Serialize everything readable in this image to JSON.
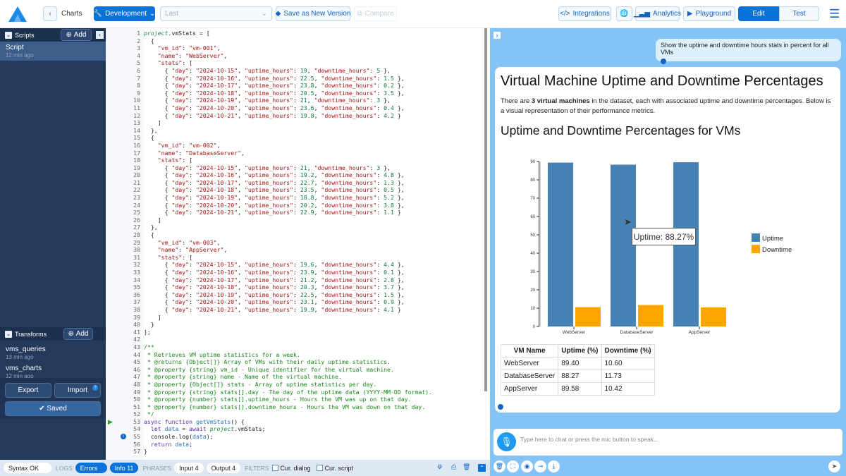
{
  "header": {
    "back_label": "Charts",
    "env_label": "Development",
    "version_placeholder": "Last",
    "save_version": "Save as New Version",
    "compare": "Compare",
    "integrations": "Integrations",
    "analytics": "Analytics",
    "playground": "Playground",
    "edit": "Edit",
    "test": "Test"
  },
  "sidebar": {
    "scripts_title": "Scripts",
    "add": "Add",
    "scripts": [
      {
        "name": "Script",
        "time": "12 min ago"
      }
    ],
    "transforms_title": "Transforms",
    "transforms": [
      {
        "name": "vms_queries",
        "time": "13 min ago"
      },
      {
        "name": "vms_charts",
        "time": "12 min ago"
      }
    ],
    "export": "Export",
    "import": "Import",
    "saved": "Saved"
  },
  "editor": {
    "lines": [
      "project.vmStats = [",
      "  {",
      "    \"vm_id\": \"vm-001\",",
      "    \"name\": \"WebServer\",",
      "    \"stats\": [",
      "      { \"day\": \"2024-10-15\", \"uptime_hours\": 19, \"downtime_hours\": 5 },",
      "      { \"day\": \"2024-10-16\", \"uptime_hours\": 22.5, \"downtime_hours\": 1.5 },",
      "      { \"day\": \"2024-10-17\", \"uptime_hours\": 23.8, \"downtime_hours\": 0.2 },",
      "      { \"day\": \"2024-10-18\", \"uptime_hours\": 20.5, \"downtime_hours\": 3.5 },",
      "      { \"day\": \"2024-10-19\", \"uptime_hours\": 21, \"downtime_hours\": 3 },",
      "      { \"day\": \"2024-10-20\", \"uptime_hours\": 23.6, \"downtime_hours\": 0.4 },",
      "      { \"day\": \"2024-10-21\", \"uptime_hours\": 19.8, \"downtime_hours\": 4.2 }",
      "    ]",
      "  },",
      "  {",
      "    \"vm_id\": \"vm-002\",",
      "    \"name\": \"DatabaseServer\",",
      "    \"stats\": [",
      "      { \"day\": \"2024-10-15\", \"uptime_hours\": 21, \"downtime_hours\": 3 },",
      "      { \"day\": \"2024-10-16\", \"uptime_hours\": 19.2, \"downtime_hours\": 4.8 },",
      "      { \"day\": \"2024-10-17\", \"uptime_hours\": 22.7, \"downtime_hours\": 1.3 },",
      "      { \"day\": \"2024-10-18\", \"uptime_hours\": 23.5, \"downtime_hours\": 0.5 },",
      "      { \"day\": \"2024-10-19\", \"uptime_hours\": 18.8, \"downtime_hours\": 5.2 },",
      "      { \"day\": \"2024-10-20\", \"uptime_hours\": 20.2, \"downtime_hours\": 3.8 },",
      "      { \"day\": \"2024-10-21\", \"uptime_hours\": 22.9, \"downtime_hours\": 1.1 }",
      "    ]",
      "  },",
      "  {",
      "    \"vm_id\": \"vm-003\",",
      "    \"name\": \"AppServer\",",
      "    \"stats\": [",
      "      { \"day\": \"2024-10-15\", \"uptime_hours\": 19.6, \"downtime_hours\": 4.4 },",
      "      { \"day\": \"2024-10-16\", \"uptime_hours\": 23.9, \"downtime_hours\": 0.1 },",
      "      { \"day\": \"2024-10-17\", \"uptime_hours\": 21.2, \"downtime_hours\": 2.8 },",
      "      { \"day\": \"2024-10-18\", \"uptime_hours\": 20.3, \"downtime_hours\": 3.7 },",
      "      { \"day\": \"2024-10-19\", \"uptime_hours\": 22.5, \"downtime_hours\": 1.5 },",
      "      { \"day\": \"2024-10-20\", \"uptime_hours\": 23.1, \"downtime_hours\": 0.9 },",
      "      { \"day\": \"2024-10-21\", \"uptime_hours\": 19.9, \"downtime_hours\": 4.1 }",
      "    ]",
      "  }",
      "];",
      "",
      "/**",
      " * Retrieves VM uptime statistics for a week.",
      " * @returns {Object[]} Array of VMs with their daily uptime statistics.",
      " * @property {string} vm_id - Unique identifier for the virtual machine.",
      " * @property {string} name - Name of the virtual machine.",
      " * @property {Object[]} stats - Array of uptime statistics per day.",
      " * @property {string} stats[].day - The day of the uptime data (YYYY-MM-DD format).",
      " * @property {number} stats[].uptime_hours - Hours the VM was up on that day.",
      " * @property {number} stats[].downtime_hours - Hours the VM was down on that day.",
      " */",
      "async function getVmStats() {",
      "  let data = await project.vmStats;",
      "  console.log(data);",
      "  return data;",
      "}"
    ]
  },
  "status": {
    "syntax": "Syntax OK",
    "logs": "LOGS",
    "errors": "Errors",
    "info": "Info 11",
    "phrases": "PHRASES",
    "input": "Input 4",
    "output": "Output 4",
    "filters": "FILTERS",
    "cur_dialog": "Cur. dialog",
    "cur_script": "Cur. script"
  },
  "chat": {
    "user_message": "Show the uptime and downtime hours stats in percent for all VMs",
    "title": "Virtual Machine Uptime and Downtime Percentages",
    "intro_pre": "There are ",
    "intro_bold": "3 virtual machines",
    "intro_post": " in the dataset, each with associated uptime and downtime percentages. Below is a visual representation of their performance metrics.",
    "chart_title": "Uptime and Downtime Percentages for VMs",
    "tooltip": "Uptime: 88.27%",
    "input_placeholder": "Type here to chat or press the mic button to speak...",
    "table": {
      "headers": [
        "VM Name",
        "Uptime (%)",
        "Downtime (%)"
      ],
      "rows": [
        [
          "WebServer",
          "89.40",
          "10.60"
        ],
        [
          "DatabaseServer",
          "88.27",
          "11.73"
        ],
        [
          "AppServer",
          "89.58",
          "10.42"
        ]
      ]
    }
  },
  "chart_data": {
    "type": "bar",
    "categories": [
      "WebServer",
      "DatabaseServer",
      "AppServer"
    ],
    "series": [
      {
        "name": "Uptime",
        "values": [
          89.4,
          88.27,
          89.58
        ],
        "color": "#4682b4"
      },
      {
        "name": "Downtime",
        "values": [
          10.6,
          11.73,
          10.42
        ],
        "color": "#ffa500"
      }
    ],
    "ylim": [
      0,
      90
    ],
    "yticks": [
      0,
      10,
      20,
      30,
      40,
      50,
      60,
      70,
      80,
      90
    ],
    "legend": "right",
    "grid": false
  },
  "colors": {
    "accent": "#0a72d8",
    "sidebar": "#233a5c",
    "chat_bg": "#84c3f8"
  }
}
